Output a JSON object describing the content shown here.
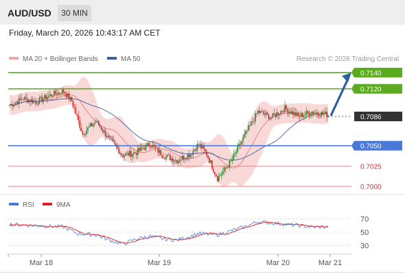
{
  "header": {
    "symbol": "AUD/USD",
    "timeframe": "30 MIN",
    "datetime": "Friday, March 20, 2026 10:43:17 AM CET"
  },
  "legend": {
    "bollinger_label": "MA 20 + Bollinger Bands",
    "ma50_label": "MA 50",
    "credit": "Research © 2026 Trading Central",
    "rsi_label": "RSI",
    "rsi_ma_label": "9MA"
  },
  "colors": {
    "resistance": "#5aab1e",
    "support": "#4a78d8",
    "pivot_red": "#e07070",
    "current": "#333333",
    "candle_up": "#2e7d32",
    "candle_down": "#c62828",
    "bollinger": "#f2a8a8",
    "ma50": "#3a5fa0",
    "rsi": "#4a78d8",
    "rsi_ma": "#e02020",
    "arrow": "#2e5f9e"
  },
  "chart_data": {
    "type": "candlestick",
    "y_range": [
      0.6995,
      0.7145
    ],
    "x_labels": [
      "Mar 18",
      "Mar 19",
      "Mar 20",
      "Mar 21"
    ],
    "levels": [
      {
        "value": 0.714,
        "label": "0.7140",
        "kind": "resistance"
      },
      {
        "value": 0.712,
        "label": "0.7120",
        "kind": "resistance"
      },
      {
        "value": 0.7086,
        "label": "0.7086",
        "kind": "current"
      },
      {
        "value": 0.705,
        "label": "0.7050",
        "kind": "support"
      },
      {
        "value": 0.7025,
        "label": "0.7025",
        "kind": "pivot"
      },
      {
        "value": 0.7,
        "label": "0.7000",
        "kind": "pivot"
      }
    ],
    "close_anchors": [
      [
        0,
        0.71
      ],
      [
        10,
        0.7108
      ],
      [
        20,
        0.7104
      ],
      [
        30,
        0.7112
      ],
      [
        40,
        0.7117
      ],
      [
        46,
        0.7105
      ],
      [
        54,
        0.7065
      ],
      [
        64,
        0.708
      ],
      [
        74,
        0.7058
      ],
      [
        84,
        0.7038
      ],
      [
        94,
        0.7042
      ],
      [
        104,
        0.7052
      ],
      [
        114,
        0.7038
      ],
      [
        124,
        0.7032
      ],
      [
        134,
        0.704
      ],
      [
        140,
        0.7052
      ],
      [
        146,
        0.704
      ],
      [
        154,
        0.701
      ],
      [
        164,
        0.703
      ],
      [
        174,
        0.7062
      ],
      [
        184,
        0.7092
      ],
      [
        194,
        0.7085
      ],
      [
        204,
        0.7096
      ],
      [
        214,
        0.7086
      ],
      [
        224,
        0.7092
      ],
      [
        236,
        0.7088
      ]
    ],
    "rsi": {
      "levels": [
        70,
        50,
        30
      ],
      "anchors": [
        [
          0,
          62
        ],
        [
          20,
          60
        ],
        [
          40,
          58
        ],
        [
          50,
          48
        ],
        [
          64,
          46
        ],
        [
          74,
          38
        ],
        [
          84,
          32
        ],
        [
          94,
          40
        ],
        [
          104,
          44
        ],
        [
          114,
          40
        ],
        [
          124,
          38
        ],
        [
          134,
          44
        ],
        [
          140,
          48
        ],
        [
          154,
          46
        ],
        [
          164,
          52
        ],
        [
          174,
          58
        ],
        [
          184,
          66
        ],
        [
          194,
          64
        ],
        [
          204,
          62
        ],
        [
          214,
          60
        ],
        [
          224,
          58
        ],
        [
          236,
          58
        ]
      ]
    }
  }
}
